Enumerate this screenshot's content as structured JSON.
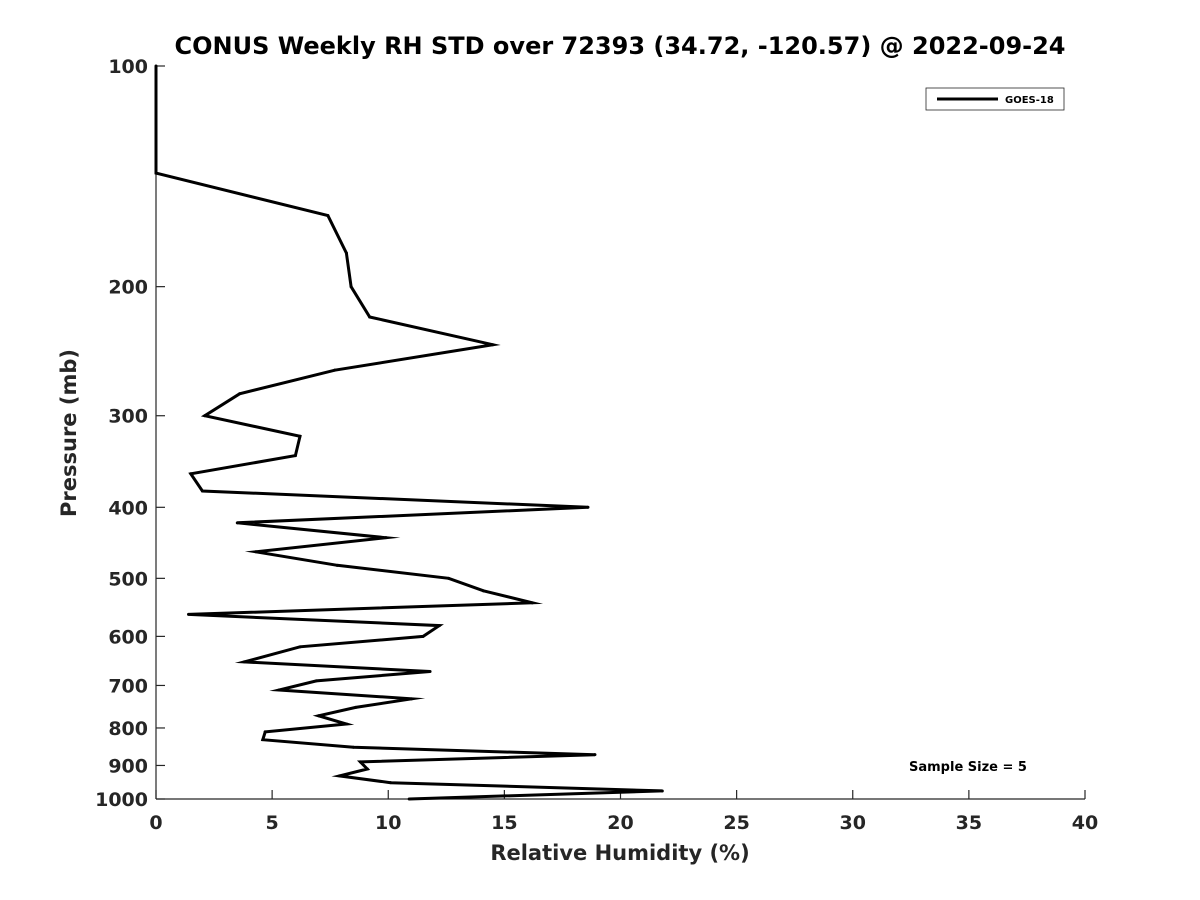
{
  "chart_data": {
    "type": "line",
    "title": "CONUS Weekly RH STD over 72393 (34.72, -120.57) @ 2022-09-24",
    "xlabel": "Relative Humidity (%)",
    "ylabel": "Pressure (mb)",
    "xlim": [
      0,
      40
    ],
    "ylim": [
      100,
      1000
    ],
    "yscale": "log",
    "y_reversed": true,
    "grid": false,
    "legend_placement": "top-right",
    "x_ticks": [
      0,
      5,
      10,
      15,
      20,
      25,
      30,
      35,
      40
    ],
    "y_ticks": [
      100,
      200,
      300,
      400,
      500,
      600,
      700,
      800,
      900,
      1000
    ],
    "annotation": "Sample Size = 5",
    "series": [
      {
        "name": "GOES-18",
        "color": "#000000",
        "x": [
          0,
          0,
          0,
          0,
          0,
          7.4,
          8.2,
          8.4,
          9.2,
          14.5,
          7.7,
          3.6,
          2.1,
          6.2,
          6.0,
          1.5,
          2.0,
          18.6,
          3.5,
          9.9,
          4.3,
          7.8,
          12.6,
          14.1,
          16.2,
          1.4,
          12.2,
          11.5,
          6.2,
          3.8,
          11.8,
          6.9,
          5.3,
          11.0,
          8.6,
          7.0,
          8.2,
          4.7,
          4.6,
          8.5,
          18.9,
          8.8,
          9.1,
          7.9,
          10.1,
          21.8,
          10.9
        ],
        "y": [
          100,
          110,
          120,
          130,
          140,
          160,
          180,
          200,
          220,
          240,
          260,
          280,
          300,
          320,
          340,
          360,
          380,
          400,
          420,
          440,
          460,
          480,
          500,
          520,
          540,
          560,
          580,
          600,
          620,
          650,
          670,
          690,
          710,
          730,
          750,
          770,
          790,
          810,
          830,
          850,
          870,
          890,
          910,
          930,
          950,
          975,
          1000
        ]
      }
    ]
  }
}
